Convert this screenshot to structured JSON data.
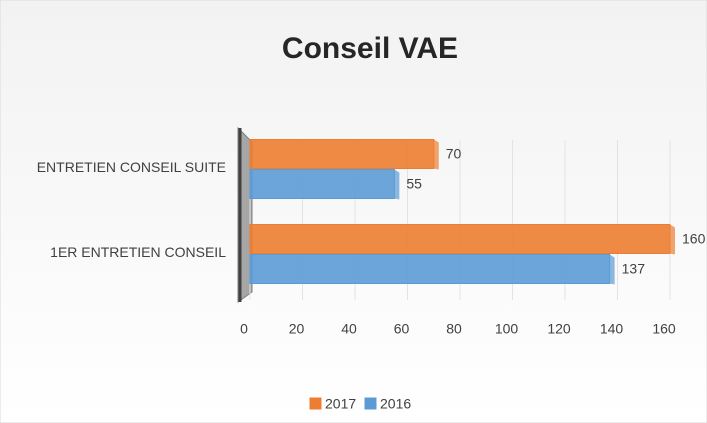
{
  "chart_data": {
    "type": "bar",
    "orientation": "horizontal",
    "title": "Conseil VAE",
    "categories": [
      "1ER ENTRETIEN CONSEIL",
      "ENTRETIEN CONSEIL SUITE"
    ],
    "series": [
      {
        "name": "2017",
        "color": "#ed7d31",
        "values": [
          160,
          70
        ]
      },
      {
        "name": "2016",
        "color": "#5b9bd5",
        "values": [
          137,
          55
        ]
      }
    ],
    "xlim": [
      0,
      160
    ],
    "xticks": [
      0,
      20,
      40,
      60,
      80,
      100,
      120,
      140,
      160
    ],
    "grid": true,
    "legend": "bottom"
  }
}
